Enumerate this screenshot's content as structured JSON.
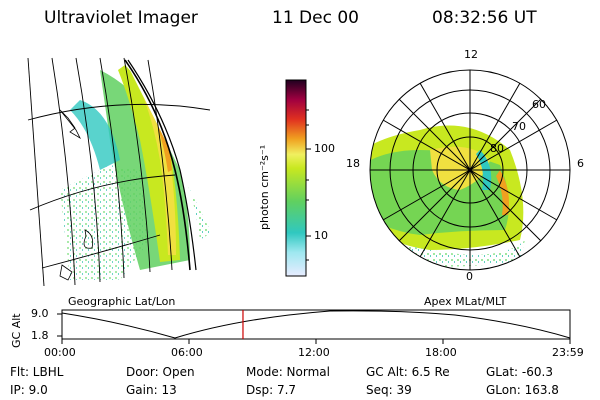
{
  "header": {
    "instrument": "Ultraviolet Imager",
    "date": "11 Dec 00",
    "time": "08:32:56 UT"
  },
  "colorbar": {
    "unit_label": "photon cm⁻²s⁻¹",
    "ticks": [
      "100",
      "10"
    ]
  },
  "left_panel": {
    "caption": "Geographic Lat/Lon"
  },
  "right_panel": {
    "caption": "Apex MLat/MLT",
    "mlt_labels": {
      "top": "12",
      "left": "18",
      "right": "6",
      "bottom": "0"
    },
    "lat_labels": [
      "60",
      "70",
      "80"
    ]
  },
  "altitude_plot": {
    "axis_title": "GC Alt",
    "y_ticks": [
      "9.0",
      "1.8"
    ],
    "x_ticks": [
      "00:00",
      "06:00",
      "12:00",
      "18:00",
      "23:59"
    ],
    "current_time_hours": 8.55
  },
  "info": {
    "filter": "Flt: LBHL",
    "ip": "IP:  9.0",
    "door": "Door: Open",
    "gain": "Gain: 13",
    "mode": "Mode: Normal",
    "dsp": "Dsp:     7.7",
    "gc_alt": "GC Alt: 6.5 Re",
    "seq": "Seq: 39",
    "glat": "GLat: -60.3",
    "glon": "GLon: 163.8"
  },
  "colors": {
    "accent_marker": "#cc0000",
    "aurora_low": "#40d8c0",
    "aurora_mid": "#c8e820",
    "aurora_high": "#f0a020"
  }
}
